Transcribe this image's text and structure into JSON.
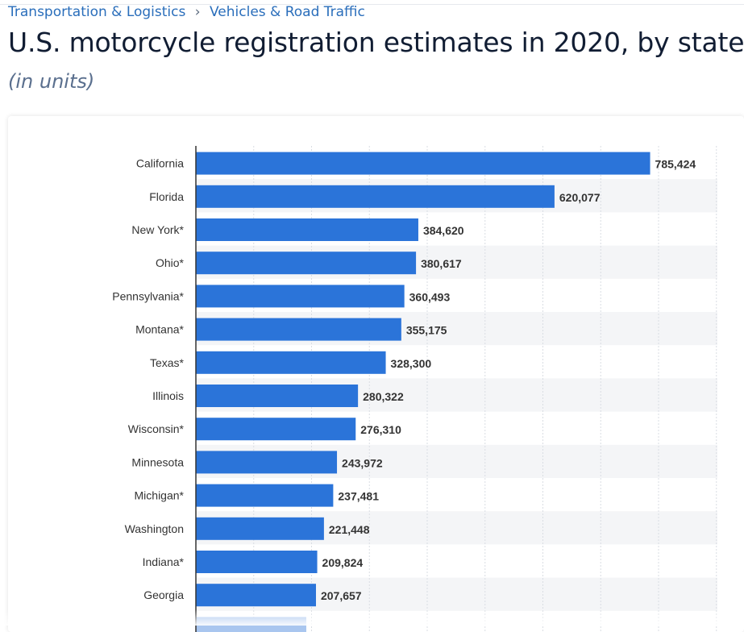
{
  "breadcrumb": {
    "items": [
      "Transportation & Logistics",
      "Vehicles & Road Traffic"
    ],
    "separator": "›"
  },
  "title": "U.S. motorcycle registration estimates in 2020, by state",
  "subtitle": "(in units)",
  "colors": {
    "bar": "#2b74d9",
    "bar_faded": "#a9c6ef",
    "grid": "#d9dde3",
    "band": "#f4f5f7",
    "label": "#333333"
  },
  "chart_data": {
    "type": "bar",
    "orientation": "horizontal",
    "categories": [
      "California",
      "Florida",
      "New York*",
      "Ohio*",
      "Pennsylvania*",
      "Montana*",
      "Texas*",
      "Illinois",
      "Wisconsin*",
      "Minnesota",
      "Michigan*",
      "Washington",
      "Indiana*",
      "Georgia"
    ],
    "values": [
      785424,
      620077,
      384620,
      380617,
      360493,
      355175,
      328300,
      280322,
      276310,
      243972,
      237481,
      221448,
      209824,
      207657
    ],
    "value_labels": [
      "785,424",
      "620,077",
      "384,620",
      "380,617",
      "360,493",
      "355,175",
      "328,300",
      "280,322",
      "276,310",
      "243,972",
      "237,481",
      "221,448",
      "209,824",
      "207,657"
    ],
    "title": "U.S. motorcycle registration estimates in 2020, by state",
    "xlabel": "",
    "ylabel": "",
    "xlim": [
      0,
      900000
    ],
    "grid": true
  }
}
